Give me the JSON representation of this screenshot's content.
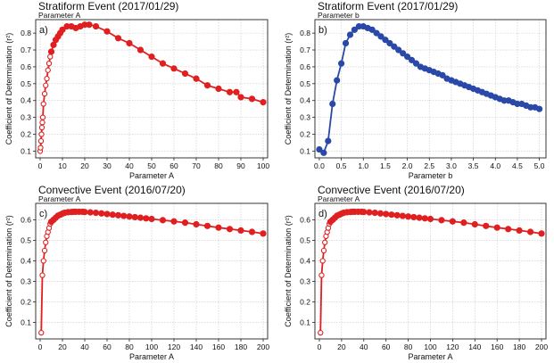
{
  "chart_data": [
    {
      "type": "line",
      "panel_label": "a)",
      "title": "Stratiform Event (2017/01/29)",
      "subtitle": "Parameter A",
      "xlabel": "Parameter A",
      "ylabel": "Coefficient of Determination (r²)",
      "xlim": [
        -2,
        102
      ],
      "ylim": [
        0.06,
        0.88
      ],
      "xticks": [
        0,
        10,
        20,
        30,
        40,
        50,
        60,
        70,
        80,
        90,
        100
      ],
      "yticks": [
        0.1,
        0.2,
        0.3,
        0.4,
        0.5,
        0.6,
        0.7,
        0.8
      ],
      "grid": true,
      "color": "#e02020",
      "open_markers_before_x": 5,
      "series": [
        {
          "x": [
            0,
            0.2,
            0.4,
            0.6,
            0.8,
            1.0,
            1.2,
            1.5,
            2,
            2.5,
            3,
            3.5,
            4,
            4.5,
            5,
            6,
            7,
            8,
            9,
            10,
            12,
            14,
            16,
            18,
            20,
            22,
            25,
            30,
            35,
            40,
            45,
            50,
            55,
            60,
            65,
            70,
            75,
            80,
            85,
            88,
            90,
            95,
            100
          ],
          "y": [
            0.1,
            0.12,
            0.16,
            0.2,
            0.24,
            0.27,
            0.3,
            0.38,
            0.44,
            0.49,
            0.53,
            0.58,
            0.62,
            0.66,
            0.69,
            0.73,
            0.76,
            0.78,
            0.8,
            0.82,
            0.84,
            0.84,
            0.83,
            0.84,
            0.85,
            0.85,
            0.84,
            0.81,
            0.77,
            0.74,
            0.7,
            0.66,
            0.62,
            0.59,
            0.56,
            0.53,
            0.49,
            0.47,
            0.45,
            0.45,
            0.42,
            0.41,
            0.39
          ]
        }
      ]
    },
    {
      "type": "line",
      "panel_label": "b)",
      "title": "Stratiform Event (2017/01/29)",
      "subtitle": "Parameter b",
      "xlabel": "Parameter b",
      "ylabel": "Coefficient of Determination (r²)",
      "xlim": [
        -0.1,
        5.15
      ],
      "ylim": [
        0.06,
        0.88
      ],
      "xticks": [
        0.0,
        0.5,
        1.0,
        1.5,
        2.0,
        2.5,
        3.0,
        3.5,
        4.0,
        4.5,
        5.0
      ],
      "xtick_labels": [
        "0.0",
        "0.5",
        "1.0",
        "1.5",
        "2.0",
        "2.5",
        "3.0",
        "3.5",
        "4.0",
        "4.5",
        "5.0"
      ],
      "yticks": [
        0.1,
        0.2,
        0.3,
        0.4,
        0.5,
        0.6,
        0.7,
        0.8
      ],
      "grid": true,
      "color": "#2a48a8",
      "series": [
        {
          "x": [
            0.0,
            0.1,
            0.2,
            0.3,
            0.4,
            0.5,
            0.6,
            0.7,
            0.8,
            0.9,
            1.0,
            1.1,
            1.2,
            1.3,
            1.4,
            1.5,
            1.6,
            1.7,
            1.8,
            1.9,
            2.0,
            2.1,
            2.2,
            2.3,
            2.4,
            2.5,
            2.6,
            2.7,
            2.8,
            2.9,
            3.0,
            3.1,
            3.2,
            3.3,
            3.4,
            3.5,
            3.6,
            3.7,
            3.8,
            3.9,
            4.0,
            4.1,
            4.2,
            4.3,
            4.4,
            4.5,
            4.6,
            4.7,
            4.8,
            4.9,
            5.0
          ],
          "y": [
            0.11,
            0.09,
            0.16,
            0.38,
            0.52,
            0.62,
            0.74,
            0.79,
            0.82,
            0.84,
            0.84,
            0.83,
            0.82,
            0.8,
            0.78,
            0.76,
            0.74,
            0.72,
            0.7,
            0.68,
            0.66,
            0.64,
            0.62,
            0.6,
            0.59,
            0.58,
            0.57,
            0.56,
            0.55,
            0.53,
            0.52,
            0.51,
            0.5,
            0.49,
            0.48,
            0.47,
            0.46,
            0.45,
            0.44,
            0.43,
            0.42,
            0.41,
            0.4,
            0.4,
            0.39,
            0.38,
            0.38,
            0.37,
            0.36,
            0.36,
            0.35
          ]
        }
      ]
    },
    {
      "type": "line",
      "panel_label": "c)",
      "title": "Convective Event (2016/07/20)",
      "subtitle": "Parameter A",
      "xlabel": "Parameter A",
      "ylabel": "Coefficient of Determination (r²)",
      "xlim": [
        -4,
        204
      ],
      "ylim": [
        0.02,
        0.68
      ],
      "xticks": [
        0,
        20,
        40,
        60,
        80,
        100,
        120,
        140,
        160,
        180,
        200
      ],
      "yticks": [
        0.1,
        0.2,
        0.3,
        0.4,
        0.5,
        0.6
      ],
      "grid": true,
      "color": "#e02020",
      "open_markers_before_x": 10,
      "series": [
        {
          "x": [
            1,
            2,
            3,
            4,
            5,
            6,
            7,
            8,
            9,
            10,
            12,
            14,
            16,
            18,
            20,
            22,
            25,
            28,
            30,
            32,
            35,
            38,
            40,
            45,
            50,
            55,
            60,
            65,
            70,
            75,
            80,
            85,
            90,
            95,
            100,
            110,
            120,
            130,
            140,
            150,
            160,
            170,
            180,
            190,
            200
          ],
          "y": [
            0.05,
            0.33,
            0.4,
            0.45,
            0.49,
            0.52,
            0.54,
            0.56,
            0.58,
            0.59,
            0.6,
            0.61,
            0.62,
            0.625,
            0.63,
            0.634,
            0.637,
            0.638,
            0.639,
            0.639,
            0.639,
            0.639,
            0.638,
            0.636,
            0.634,
            0.631,
            0.628,
            0.625,
            0.622,
            0.619,
            0.616,
            0.613,
            0.61,
            0.607,
            0.604,
            0.598,
            0.592,
            0.586,
            0.578,
            0.57,
            0.562,
            0.555,
            0.548,
            0.541,
            0.533
          ]
        }
      ]
    },
    {
      "type": "line",
      "panel_label": "d)",
      "title": "Convective Event (2016/07/20)",
      "subtitle": "Parameter A",
      "xlabel": "Parameter A",
      "ylabel": "Coefficient of Determination (r²)",
      "xlim": [
        -4,
        204
      ],
      "ylim": [
        0.02,
        0.68
      ],
      "xticks": [
        0,
        20,
        40,
        60,
        80,
        100,
        120,
        140,
        160,
        180,
        200
      ],
      "yticks": [
        0.1,
        0.2,
        0.3,
        0.4,
        0.5,
        0.6
      ],
      "grid": true,
      "color": "#e02020",
      "open_markers_before_x": 10,
      "series": [
        {
          "x": [
            1,
            2,
            3,
            4,
            5,
            6,
            7,
            8,
            9,
            10,
            12,
            14,
            16,
            18,
            20,
            22,
            25,
            28,
            30,
            32,
            35,
            38,
            40,
            45,
            50,
            55,
            60,
            65,
            70,
            75,
            80,
            85,
            90,
            95,
            100,
            110,
            120,
            130,
            140,
            150,
            160,
            170,
            180,
            190,
            200
          ],
          "y": [
            0.05,
            0.33,
            0.4,
            0.45,
            0.49,
            0.52,
            0.54,
            0.56,
            0.58,
            0.59,
            0.6,
            0.61,
            0.62,
            0.625,
            0.63,
            0.634,
            0.637,
            0.638,
            0.639,
            0.639,
            0.639,
            0.639,
            0.638,
            0.636,
            0.634,
            0.631,
            0.628,
            0.625,
            0.622,
            0.619,
            0.616,
            0.613,
            0.61,
            0.607,
            0.604,
            0.598,
            0.592,
            0.586,
            0.578,
            0.57,
            0.562,
            0.555,
            0.548,
            0.541,
            0.533
          ]
        }
      ]
    }
  ]
}
